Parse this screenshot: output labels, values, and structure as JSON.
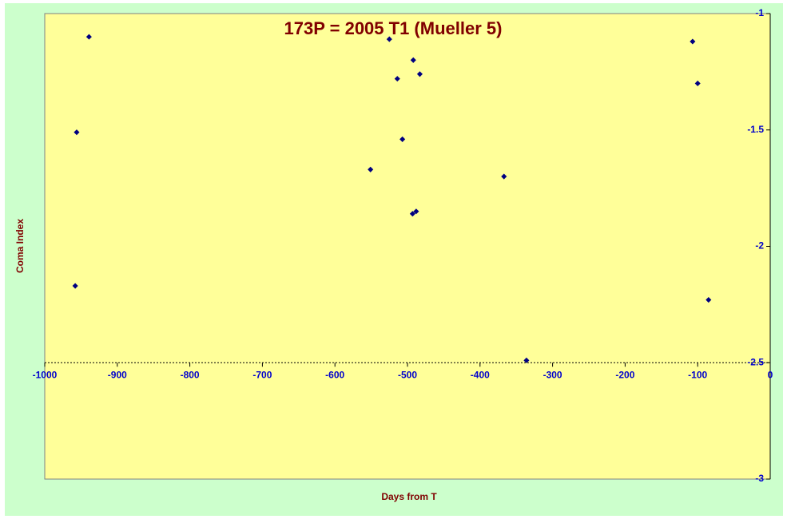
{
  "chart_data": {
    "type": "scatter",
    "title": "173P = 2005 T1 (Mueller 5)",
    "x_label": "Days from T",
    "y_label": "Coma Index",
    "series": [
      {
        "name": "Coma Index",
        "color": "#000080",
        "x": [
          -939,
          -956,
          -958,
          -525,
          -492,
          -514,
          -483,
          -507,
          -551,
          -488,
          -493,
          -367,
          -336,
          -107,
          -100,
          -85
        ],
        "values": [
          -1.1,
          -1.51,
          -2.17,
          -1.11,
          -1.2,
          -1.28,
          -1.26,
          -1.54,
          -1.67,
          -1.85,
          -1.86,
          -1.7,
          -2.49,
          -1.12,
          -1.3,
          -2.23
        ]
      }
    ],
    "xlim": [
      -1000,
      0
    ],
    "xticks": [
      -1000,
      -900,
      -800,
      -700,
      -600,
      -500,
      -400,
      -300,
      -200,
      -100,
      0
    ],
    "ylim": [
      -3,
      -1
    ],
    "yticks": [
      -1,
      -1.5,
      -2,
      -2.5,
      -3
    ],
    "x_axis_at": -2.5,
    "y_axis_at": 0
  }
}
